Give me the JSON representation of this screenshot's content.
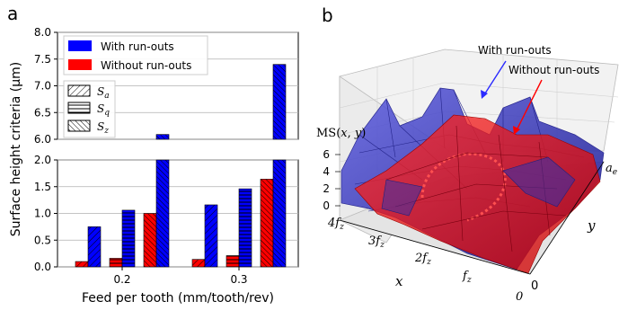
{
  "panel_a_label": "a",
  "panel_b_label": "b",
  "chart_data": [
    {
      "type": "bar",
      "panel": "a",
      "categories": [
        "0.2",
        "0.3"
      ],
      "xlabel": "Feed per tooth (mm/tooth/rev)",
      "ylabel": "Surface height criteria (μm)",
      "y_broken": true,
      "ylim_lower": [
        0.0,
        2.0
      ],
      "ylim_upper": [
        6.0,
        8.0
      ],
      "yticks_lower": [
        "0.0",
        "0.5",
        "1.0",
        "1.5",
        "2.0"
      ],
      "yticks_upper": [
        "6.0",
        "6.5",
        "7.0",
        "7.5",
        "8.0"
      ],
      "grid": "horizontal",
      "legend_position": "upper-left",
      "legend_series": [
        "With run-outs",
        "Without run-outs"
      ],
      "legend_params": [
        "Sa",
        "Sq",
        "Sz"
      ],
      "colors": {
        "with_runouts": "#0000ff",
        "without_runouts": "#ff0000"
      },
      "groups": [
        {
          "feed": "0.2",
          "bars": [
            {
              "param": "Sa",
              "with": 0.75,
              "without": 0.1
            },
            {
              "param": "Sq",
              "with": 1.06,
              "without": 0.16
            },
            {
              "param": "Sz",
              "with": 6.09,
              "without": 1.0
            }
          ]
        },
        {
          "feed": "0.3",
          "bars": [
            {
              "param": "Sa",
              "with": 1.16,
              "without": 0.14
            },
            {
              "param": "Sq",
              "with": 1.46,
              "without": 0.21
            },
            {
              "param": "Sz",
              "with": 7.4,
              "without": 1.64
            }
          ]
        }
      ]
    },
    {
      "type": "surface",
      "panel": "b",
      "zlabel": "MS(x, y)",
      "zticks": [
        "0",
        "2",
        "4",
        "6"
      ],
      "xlabel": "x",
      "xticks": [
        "4fz",
        "3fz",
        "2fz",
        "fz",
        "0"
      ],
      "ylabel": "y",
      "yticks": [
        "0",
        "ae"
      ],
      "annotations": [
        "With run-outs",
        "Without run-outs"
      ],
      "series": [
        {
          "name": "With run-outs",
          "color": "#2a2acc"
        },
        {
          "name": "Without run-outs",
          "color": "#ff1010"
        }
      ]
    }
  ]
}
